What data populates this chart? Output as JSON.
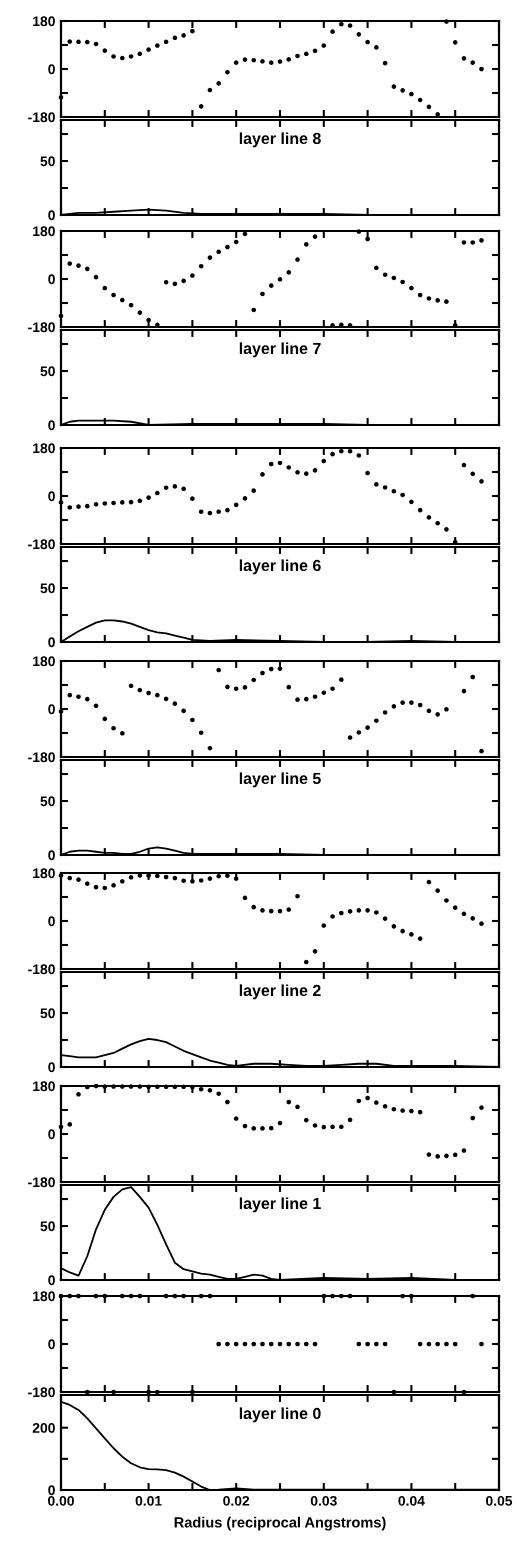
{
  "chart_data": [
    {
      "type": "scatter",
      "color": "#000000",
      "marker": "circle",
      "xlim": [
        0,
        0.05
      ],
      "ylim": [
        -180,
        180
      ],
      "tick_labels": "y",
      "xticks": [
        {
          "value": 0,
          "label": null
        },
        {
          "value": 0.005,
          "label": null
        },
        {
          "value": 0.01,
          "label": null
        },
        {
          "value": 0.015,
          "label": null
        },
        {
          "value": 0.02,
          "label": null
        },
        {
          "value": 0.025,
          "label": null
        },
        {
          "value": 0.03,
          "label": null
        },
        {
          "value": 0.035,
          "label": null
        },
        {
          "value": 0.04,
          "label": null
        },
        {
          "value": 0.045,
          "label": null
        },
        {
          "value": 0.05,
          "label": null
        }
      ],
      "yticks": [
        -180,
        {
          "value": -90,
          "label": null
        },
        0,
        {
          "value": 90,
          "label": null
        },
        180
      ],
      "x": [
        0,
        0.001,
        0.002,
        0.003,
        0.004,
        0.005,
        0.006,
        0.007,
        0.008,
        0.009,
        0.01,
        0.011,
        0.012,
        0.013,
        0.014,
        0.015,
        0.016,
        0.017,
        0.018,
        0.019,
        0.02,
        0.021,
        0.022,
        0.023,
        0.024,
        0.025,
        0.026,
        0.027,
        0.028,
        0.029,
        0.03,
        0.031,
        0.032,
        0.033,
        0.034,
        0.035,
        0.036,
        0.037,
        0.038,
        0.039,
        0.04,
        0.041,
        0.042,
        0.043,
        0.044,
        0.045,
        0.046,
        0.047,
        0.048
      ],
      "values": [
        -106,
        103,
        102,
        101,
        94,
        69,
        47,
        41,
        47,
        57,
        73,
        88,
        102,
        117,
        126,
        142,
        -140,
        -79,
        -54,
        -12,
        24,
        35,
        33,
        29,
        24,
        28,
        36,
        49,
        57,
        68,
        88,
        140,
        168,
        163,
        130,
        101,
        81,
        22,
        -66,
        -80,
        -94,
        -116,
        -142,
        -170,
        178,
        100,
        40,
        24,
        0
      ]
    },
    {
      "type": "line",
      "color": "#000000",
      "title": "layer line 8",
      "xlim": [
        0,
        0.05
      ],
      "ylim": [
        0,
        88
      ],
      "tick_labels": "y",
      "xticks": [
        {
          "value": 0,
          "label": null
        },
        {
          "value": 0.005,
          "label": null
        },
        {
          "value": 0.01,
          "label": null
        },
        {
          "value": 0.015,
          "label": null
        },
        {
          "value": 0.02,
          "label": null
        },
        {
          "value": 0.025,
          "label": null
        },
        {
          "value": 0.03,
          "label": null
        },
        {
          "value": 0.035,
          "label": null
        },
        {
          "value": 0.04,
          "label": null
        },
        {
          "value": 0.045,
          "label": null
        },
        {
          "value": 0.05,
          "label": null
        }
      ],
      "yticks": [
        0,
        {
          "value": 25,
          "label": null
        },
        50,
        {
          "value": 75,
          "label": null
        }
      ],
      "x": [
        0,
        0.002,
        0.004,
        0.006,
        0.008,
        0.01,
        0.012,
        0.014,
        0.016,
        0.02,
        0.025,
        0.03,
        0.035,
        0.04,
        0.045,
        0.05
      ],
      "values": [
        0,
        2,
        2,
        3,
        4,
        5,
        4,
        2,
        1,
        1,
        1,
        1,
        0,
        0,
        0,
        0
      ]
    },
    {
      "type": "scatter",
      "color": "#000000",
      "marker": "circle",
      "xlim": [
        0,
        0.05
      ],
      "ylim": [
        -180,
        180
      ],
      "tick_labels": "y",
      "xticks": [
        {
          "value": 0,
          "label": null
        },
        {
          "value": 0.005,
          "label": null
        },
        {
          "value": 0.01,
          "label": null
        },
        {
          "value": 0.015,
          "label": null
        },
        {
          "value": 0.02,
          "label": null
        },
        {
          "value": 0.025,
          "label": null
        },
        {
          "value": 0.03,
          "label": null
        },
        {
          "value": 0.035,
          "label": null
        },
        {
          "value": 0.04,
          "label": null
        },
        {
          "value": 0.045,
          "label": null
        },
        {
          "value": 0.05,
          "label": null
        }
      ],
      "yticks": [
        -180,
        {
          "value": -90,
          "label": null
        },
        0,
        {
          "value": 90,
          "label": null
        },
        180
      ],
      "x": [
        0,
        0.001,
        0.002,
        0.003,
        0.004,
        0.005,
        0.006,
        0.007,
        0.008,
        0.009,
        0.01,
        0.011,
        0.012,
        0.013,
        0.014,
        0.015,
        0.016,
        0.017,
        0.018,
        0.019,
        0.02,
        0.021,
        0.022,
        0.023,
        0.024,
        0.025,
        0.026,
        0.027,
        0.028,
        0.029,
        0.03,
        0.031,
        0.032,
        0.033,
        0.034,
        0.035,
        0.036,
        0.037,
        0.038,
        0.039,
        0.04,
        0.041,
        0.042,
        0.043,
        0.044,
        0.045,
        0.046,
        0.047,
        0.048
      ],
      "values": [
        -138,
        58,
        50,
        38,
        7,
        -34,
        -60,
        -79,
        -98,
        -126,
        -154,
        -172,
        -12,
        -18,
        -7,
        13,
        48,
        80,
        102,
        120,
        139,
        169,
        -116,
        -56,
        -25,
        -1,
        25,
        73,
        130,
        159,
        null,
        -174,
        -172,
        -174,
        178,
        150,
        42,
        16,
        4,
        -11,
        -34,
        -60,
        -73,
        -80,
        -85,
        -174,
        137,
        137,
        145
      ]
    },
    {
      "type": "line",
      "color": "#000000",
      "title": "layer line 7",
      "xlim": [
        0,
        0.05
      ],
      "ylim": [
        0,
        88
      ],
      "tick_labels": "y",
      "xticks": [
        {
          "value": 0,
          "label": null
        },
        {
          "value": 0.005,
          "label": null
        },
        {
          "value": 0.01,
          "label": null
        },
        {
          "value": 0.015,
          "label": null
        },
        {
          "value": 0.02,
          "label": null
        },
        {
          "value": 0.025,
          "label": null
        },
        {
          "value": 0.03,
          "label": null
        },
        {
          "value": 0.035,
          "label": null
        },
        {
          "value": 0.04,
          "label": null
        },
        {
          "value": 0.045,
          "label": null
        },
        {
          "value": 0.05,
          "label": null
        }
      ],
      "yticks": [
        0,
        {
          "value": 25,
          "label": null
        },
        50,
        {
          "value": 75,
          "label": null
        }
      ],
      "x": [
        0,
        0.001,
        0.002,
        0.004,
        0.006,
        0.008,
        0.01,
        0.015,
        0.02,
        0.025,
        0.03,
        0.035,
        0.04,
        0.045,
        0.05
      ],
      "values": [
        0,
        3,
        4,
        4,
        4,
        3,
        0,
        1,
        1,
        1,
        1,
        0,
        0,
        0,
        0
      ]
    },
    {
      "type": "scatter",
      "color": "#000000",
      "marker": "circle",
      "xlim": [
        0,
        0.05
      ],
      "ylim": [
        -180,
        180
      ],
      "tick_labels": "y",
      "xticks": [
        {
          "value": 0,
          "label": null
        },
        {
          "value": 0.005,
          "label": null
        },
        {
          "value": 0.01,
          "label": null
        },
        {
          "value": 0.015,
          "label": null
        },
        {
          "value": 0.02,
          "label": null
        },
        {
          "value": 0.025,
          "label": null
        },
        {
          "value": 0.03,
          "label": null
        },
        {
          "value": 0.035,
          "label": null
        },
        {
          "value": 0.04,
          "label": null
        },
        {
          "value": 0.045,
          "label": null
        },
        {
          "value": 0.05,
          "label": null
        }
      ],
      "yticks": [
        -180,
        {
          "value": -90,
          "label": null
        },
        0,
        {
          "value": 90,
          "label": null
        },
        180
      ],
      "x": [
        0,
        0.001,
        0.002,
        0.003,
        0.004,
        0.005,
        0.006,
        0.007,
        0.008,
        0.009,
        0.01,
        0.011,
        0.012,
        0.013,
        0.014,
        0.015,
        0.016,
        0.017,
        0.018,
        0.019,
        0.02,
        0.021,
        0.022,
        0.023,
        0.024,
        0.025,
        0.026,
        0.027,
        0.028,
        0.029,
        0.03,
        0.031,
        0.032,
        0.033,
        0.034,
        0.035,
        0.036,
        0.037,
        0.038,
        0.039,
        0.04,
        0.041,
        0.042,
        0.043,
        0.044,
        0.045,
        0.046,
        0.047,
        0.048
      ],
      "values": [
        -24,
        -43,
        -40,
        -38,
        -31,
        -28,
        -26,
        -24,
        -23,
        -18,
        -6,
        11,
        31,
        36,
        27,
        -10,
        -59,
        -64,
        -59,
        -53,
        -33,
        -9,
        20,
        81,
        120,
        124,
        107,
        89,
        84,
        96,
        131,
        157,
        168,
        168,
        152,
        86,
        44,
        32,
        18,
        4,
        -22,
        -53,
        -80,
        -102,
        -125,
        -173,
        116,
        83,
        55
      ]
    },
    {
      "type": "line",
      "color": "#000000",
      "title": "layer line 6",
      "xlim": [
        0,
        0.05
      ],
      "ylim": [
        0,
        88
      ],
      "tick_labels": "y",
      "xticks": [
        {
          "value": 0,
          "label": null
        },
        {
          "value": 0.005,
          "label": null
        },
        {
          "value": 0.01,
          "label": null
        },
        {
          "value": 0.015,
          "label": null
        },
        {
          "value": 0.02,
          "label": null
        },
        {
          "value": 0.025,
          "label": null
        },
        {
          "value": 0.03,
          "label": null
        },
        {
          "value": 0.035,
          "label": null
        },
        {
          "value": 0.04,
          "label": null
        },
        {
          "value": 0.045,
          "label": null
        },
        {
          "value": 0.05,
          "label": null
        }
      ],
      "yticks": [
        0,
        {
          "value": 25,
          "label": null
        },
        50,
        {
          "value": 75,
          "label": null
        }
      ],
      "x": [
        0,
        0.001,
        0.002,
        0.003,
        0.004,
        0.005,
        0.006,
        0.007,
        0.008,
        0.009,
        0.01,
        0.011,
        0.012,
        0.013,
        0.014,
        0.015,
        0.017,
        0.02,
        0.025,
        0.03,
        0.035,
        0.04,
        0.045,
        0.05
      ],
      "values": [
        0,
        5,
        10,
        14,
        18,
        20,
        20,
        19,
        17,
        14,
        11,
        9,
        8,
        6,
        4,
        2,
        1,
        2,
        1,
        0,
        0,
        1,
        0,
        0
      ]
    },
    {
      "type": "scatter",
      "color": "#000000",
      "marker": "circle",
      "xlim": [
        0,
        0.05
      ],
      "ylim": [
        -180,
        180
      ],
      "tick_labels": "y",
      "xticks": [
        {
          "value": 0,
          "label": null
        },
        {
          "value": 0.005,
          "label": null
        },
        {
          "value": 0.01,
          "label": null
        },
        {
          "value": 0.015,
          "label": null
        },
        {
          "value": 0.02,
          "label": null
        },
        {
          "value": 0.025,
          "label": null
        },
        {
          "value": 0.03,
          "label": null
        },
        {
          "value": 0.035,
          "label": null
        },
        {
          "value": 0.04,
          "label": null
        },
        {
          "value": 0.045,
          "label": null
        },
        {
          "value": 0.05,
          "label": null
        }
      ],
      "yticks": [
        -180,
        {
          "value": -90,
          "label": null
        },
        0,
        {
          "value": 90,
          "label": null
        },
        180
      ],
      "x": [
        0,
        0.001,
        0.002,
        0.003,
        0.004,
        0.005,
        0.006,
        0.007,
        0.008,
        0.009,
        0.01,
        0.011,
        0.012,
        0.013,
        0.014,
        0.015,
        0.016,
        0.017,
        0.018,
        0.019,
        0.02,
        0.021,
        0.022,
        0.023,
        0.024,
        0.025,
        0.026,
        0.027,
        0.028,
        0.029,
        0.03,
        0.031,
        0.032,
        0.033,
        0.034,
        0.035,
        0.036,
        0.037,
        0.038,
        0.039,
        0.04,
        0.041,
        0.042,
        0.043,
        0.044,
        0.045,
        0.046,
        0.047,
        0.048
      ],
      "values": [
        -9,
        52,
        46,
        37,
        12,
        -37,
        -72,
        -91,
        87,
        71,
        60,
        52,
        38,
        20,
        -7,
        -41,
        -89,
        -147,
        146,
        83,
        76,
        81,
        109,
        135,
        150,
        151,
        82,
        35,
        37,
        46,
        61,
        76,
        110,
        -107,
        -88,
        -70,
        -44,
        -13,
        10,
        24,
        24,
        15,
        -7,
        -20,
        -1,
        null,
        67,
        120,
        -158
      ]
    },
    {
      "type": "line",
      "color": "#000000",
      "title": "layer line 5",
      "xlim": [
        0,
        0.05
      ],
      "ylim": [
        0,
        88
      ],
      "tick_labels": "y",
      "xticks": [
        {
          "value": 0,
          "label": null
        },
        {
          "value": 0.005,
          "label": null
        },
        {
          "value": 0.01,
          "label": null
        },
        {
          "value": 0.015,
          "label": null
        },
        {
          "value": 0.02,
          "label": null
        },
        {
          "value": 0.025,
          "label": null
        },
        {
          "value": 0.03,
          "label": null
        },
        {
          "value": 0.035,
          "label": null
        },
        {
          "value": 0.04,
          "label": null
        },
        {
          "value": 0.045,
          "label": null
        },
        {
          "value": 0.05,
          "label": null
        }
      ],
      "yticks": [
        0,
        {
          "value": 25,
          "label": null
        },
        50,
        {
          "value": 75,
          "label": null
        }
      ],
      "x": [
        0,
        0.001,
        0.002,
        0.003,
        0.004,
        0.005,
        0.006,
        0.007,
        0.008,
        0.009,
        0.01,
        0.011,
        0.012,
        0.013,
        0.014,
        0.015,
        0.02,
        0.025,
        0.03,
        0.035,
        0.04,
        0.045,
        0.05
      ],
      "values": [
        0,
        3,
        4,
        4,
        3,
        2,
        2,
        1,
        1,
        3,
        6,
        7,
        6,
        4,
        2,
        1,
        1,
        1,
        0,
        0,
        0,
        0,
        0
      ]
    },
    {
      "type": "scatter",
      "color": "#000000",
      "marker": "circle",
      "xlim": [
        0,
        0.05
      ],
      "ylim": [
        -180,
        180
      ],
      "tick_labels": "y",
      "xticks": [
        {
          "value": 0,
          "label": null
        },
        {
          "value": 0.005,
          "label": null
        },
        {
          "value": 0.01,
          "label": null
        },
        {
          "value": 0.015,
          "label": null
        },
        {
          "value": 0.02,
          "label": null
        },
        {
          "value": 0.025,
          "label": null
        },
        {
          "value": 0.03,
          "label": null
        },
        {
          "value": 0.035,
          "label": null
        },
        {
          "value": 0.04,
          "label": null
        },
        {
          "value": 0.045,
          "label": null
        },
        {
          "value": 0.05,
          "label": null
        }
      ],
      "yticks": [
        -180,
        {
          "value": -90,
          "label": null
        },
        0,
        {
          "value": 90,
          "label": null
        },
        180
      ],
      "x": [
        0,
        0.001,
        0.002,
        0.003,
        0.004,
        0.005,
        0.006,
        0.007,
        0.008,
        0.009,
        0.01,
        0.011,
        0.012,
        0.013,
        0.014,
        0.015,
        0.016,
        0.017,
        0.018,
        0.019,
        0.02,
        0.021,
        0.022,
        0.023,
        0.024,
        0.025,
        0.026,
        0.027,
        0.028,
        0.029,
        0.03,
        0.031,
        0.032,
        0.033,
        0.034,
        0.035,
        0.036,
        0.037,
        0.038,
        0.039,
        0.04,
        0.041,
        0.042,
        0.043,
        0.044,
        0.045,
        0.046,
        0.047,
        0.048
      ],
      "values": [
        170,
        161,
        155,
        140,
        127,
        124,
        134,
        149,
        164,
        171,
        171,
        169,
        165,
        161,
        151,
        149,
        152,
        159,
        168,
        170,
        159,
        87,
        52,
        40,
        37,
        37,
        43,
        93,
        -154,
        -114,
        -17,
        17,
        30,
        36,
        40,
        40,
        32,
        9,
        -20,
        -38,
        -50,
        -66,
        146,
        114,
        77,
        50,
        27,
        10,
        -10
      ]
    },
    {
      "type": "line",
      "color": "#000000",
      "title": "layer line 2",
      "xlim": [
        0,
        0.05
      ],
      "ylim": [
        0,
        88
      ],
      "tick_labels": "y",
      "xticks": [
        {
          "value": 0,
          "label": null
        },
        {
          "value": 0.005,
          "label": null
        },
        {
          "value": 0.01,
          "label": null
        },
        {
          "value": 0.015,
          "label": null
        },
        {
          "value": 0.02,
          "label": null
        },
        {
          "value": 0.025,
          "label": null
        },
        {
          "value": 0.03,
          "label": null
        },
        {
          "value": 0.035,
          "label": null
        },
        {
          "value": 0.04,
          "label": null
        },
        {
          "value": 0.045,
          "label": null
        },
        {
          "value": 0.05,
          "label": null
        }
      ],
      "yticks": [
        0,
        {
          "value": 25,
          "label": null
        },
        50,
        {
          "value": 75,
          "label": null
        }
      ],
      "x": [
        0,
        0.001,
        0.002,
        0.003,
        0.004,
        0.005,
        0.006,
        0.007,
        0.008,
        0.009,
        0.01,
        0.011,
        0.012,
        0.013,
        0.014,
        0.015,
        0.016,
        0.017,
        0.018,
        0.019,
        0.02,
        0.022,
        0.024,
        0.026,
        0.028,
        0.03,
        0.032,
        0.034,
        0.036,
        0.038,
        0.04,
        0.045,
        0.05
      ],
      "values": [
        11,
        10,
        9,
        9,
        9,
        11,
        13,
        17,
        21,
        24,
        26,
        25,
        23,
        19,
        15,
        12,
        9,
        6,
        4,
        2,
        1,
        3,
        3,
        2,
        1,
        1,
        2,
        3,
        3,
        1,
        1,
        1,
        0
      ]
    },
    {
      "type": "scatter",
      "color": "#000000",
      "marker": "circle",
      "xlim": [
        0,
        0.05
      ],
      "ylim": [
        -180,
        180
      ],
      "tick_labels": "y",
      "xticks": [
        {
          "value": 0,
          "label": null
        },
        {
          "value": 0.005,
          "label": null
        },
        {
          "value": 0.01,
          "label": null
        },
        {
          "value": 0.015,
          "label": null
        },
        {
          "value": 0.02,
          "label": null
        },
        {
          "value": 0.025,
          "label": null
        },
        {
          "value": 0.03,
          "label": null
        },
        {
          "value": 0.035,
          "label": null
        },
        {
          "value": 0.04,
          "label": null
        },
        {
          "value": 0.045,
          "label": null
        },
        {
          "value": 0.05,
          "label": null
        }
      ],
      "yticks": [
        -180,
        {
          "value": -90,
          "label": null
        },
        0,
        {
          "value": 90,
          "label": null
        },
        180
      ],
      "x": [
        0,
        0.001,
        0.002,
        0.003,
        0.004,
        0.005,
        0.006,
        0.007,
        0.008,
        0.009,
        0.01,
        0.011,
        0.012,
        0.013,
        0.014,
        0.015,
        0.016,
        0.017,
        0.018,
        0.019,
        0.02,
        0.021,
        0.022,
        0.023,
        0.024,
        0.025,
        0.026,
        0.027,
        0.028,
        0.029,
        0.03,
        0.031,
        0.032,
        0.033,
        0.034,
        0.035,
        0.036,
        0.037,
        0.038,
        0.039,
        0.04,
        0.041,
        0.042,
        0.043,
        0.044,
        0.045,
        0.046,
        0.047,
        0.048
      ],
      "values": [
        27,
        36,
        149,
        176,
        180,
        178,
        178,
        178,
        178,
        178,
        177,
        177,
        177,
        177,
        177,
        176,
        168,
        164,
        151,
        120,
        58,
        30,
        21,
        21,
        22,
        41,
        120,
        102,
        52,
        32,
        26,
        27,
        27,
        53,
        124,
        135,
        118,
        104,
        93,
        88,
        86,
        82,
        -77,
        -84,
        -82,
        -78,
        -62,
        60,
        99
      ]
    },
    {
      "type": "line",
      "color": "#000000",
      "title": "layer line 1",
      "xlim": [
        0,
        0.05
      ],
      "ylim": [
        0,
        88
      ],
      "tick_labels": "y",
      "xticks": [
        {
          "value": 0,
          "label": null
        },
        {
          "value": 0.005,
          "label": null
        },
        {
          "value": 0.01,
          "label": null
        },
        {
          "value": 0.015,
          "label": null
        },
        {
          "value": 0.02,
          "label": null
        },
        {
          "value": 0.025,
          "label": null
        },
        {
          "value": 0.03,
          "label": null
        },
        {
          "value": 0.035,
          "label": null
        },
        {
          "value": 0.04,
          "label": null
        },
        {
          "value": 0.045,
          "label": null
        },
        {
          "value": 0.05,
          "label": null
        }
      ],
      "yticks": [
        0,
        {
          "value": 25,
          "label": null
        },
        50,
        {
          "value": 75,
          "label": null
        }
      ],
      "x": [
        0,
        0.001,
        0.002,
        0.003,
        0.004,
        0.005,
        0.006,
        0.007,
        0.008,
        0.009,
        0.01,
        0.011,
        0.012,
        0.013,
        0.014,
        0.015,
        0.016,
        0.017,
        0.018,
        0.019,
        0.02,
        0.021,
        0.022,
        0.023,
        0.024,
        0.025,
        0.03,
        0.035,
        0.04,
        0.045,
        0.05
      ],
      "values": [
        11,
        7,
        4,
        22,
        47,
        65,
        77,
        84,
        86,
        77,
        67,
        51,
        33,
        16,
        10,
        8,
        6,
        5,
        3,
        1,
        1,
        3,
        5,
        4,
        1,
        0,
        2,
        1,
        2,
        0,
        0
      ]
    },
    {
      "type": "scatter",
      "color": "#000000",
      "marker": "circle",
      "xlim": [
        0,
        0.05
      ],
      "ylim": [
        -180,
        180
      ],
      "tick_labels": "y",
      "xticks": [
        {
          "value": 0,
          "label": null
        },
        {
          "value": 0.005,
          "label": null
        },
        {
          "value": 0.01,
          "label": null
        },
        {
          "value": 0.015,
          "label": null
        },
        {
          "value": 0.02,
          "label": null
        },
        {
          "value": 0.025,
          "label": null
        },
        {
          "value": 0.03,
          "label": null
        },
        {
          "value": 0.035,
          "label": null
        },
        {
          "value": 0.04,
          "label": null
        },
        {
          "value": 0.045,
          "label": null
        },
        {
          "value": 0.05,
          "label": null
        }
      ],
      "yticks": [
        -180,
        {
          "value": -90,
          "label": null
        },
        0,
        {
          "value": 90,
          "label": null
        },
        180
      ],
      "x": [
        0,
        0.001,
        0.002,
        0.003,
        0.004,
        0.005,
        0.006,
        0.007,
        0.008,
        0.009,
        0.01,
        0.011,
        0.012,
        0.013,
        0.014,
        0.015,
        0.016,
        0.017,
        0.018,
        0.019,
        0.02,
        0.021,
        0.022,
        0.023,
        0.024,
        0.025,
        0.026,
        0.027,
        0.028,
        0.029,
        0.03,
        0.031,
        0.032,
        0.033,
        0.034,
        0.035,
        0.036,
        0.037,
        0.038,
        0.039,
        0.04,
        0.041,
        0.042,
        0.043,
        0.044,
        0.045,
        0.046,
        0.047,
        0.048
      ],
      "values": [
        180,
        180,
        180,
        -180,
        180,
        180,
        -180,
        180,
        180,
        180,
        -180,
        -180,
        180,
        180,
        180,
        -180,
        180,
        180,
        0,
        0,
        0,
        0,
        0,
        0,
        0,
        0,
        0,
        0,
        0,
        0,
        180,
        180,
        180,
        180,
        0,
        0,
        0,
        0,
        -180,
        180,
        180,
        0,
        0,
        0,
        0,
        0,
        -180,
        180,
        0
      ]
    },
    {
      "type": "line",
      "color": "#000000",
      "title": "layer line 0",
      "xlabel": "Radius (reciprocal Angstroms)",
      "xlim": [
        0,
        0.05
      ],
      "ylim": [
        0,
        305
      ],
      "xticks": [
        {
          "value": 0,
          "label": "0.00"
        },
        {
          "value": 0.005,
          "label": null
        },
        {
          "value": 0.01,
          "label": "0.01"
        },
        {
          "value": 0.015,
          "label": null
        },
        {
          "value": 0.02,
          "label": "0.02"
        },
        {
          "value": 0.025,
          "label": null
        },
        {
          "value": 0.03,
          "label": "0.03"
        },
        {
          "value": 0.035,
          "label": null
        },
        {
          "value": 0.04,
          "label": "0.04"
        },
        {
          "value": 0.045,
          "label": null
        },
        {
          "value": 0.05,
          "label": "0.05"
        }
      ],
      "yticks": [
        0,
        {
          "value": 100,
          "label": null
        },
        200
      ],
      "x": [
        0,
        0.001,
        0.002,
        0.003,
        0.004,
        0.005,
        0.006,
        0.007,
        0.008,
        0.009,
        0.01,
        0.011,
        0.012,
        0.013,
        0.014,
        0.015,
        0.016,
        0.017,
        0.018,
        0.02,
        0.022,
        0.025,
        0.03,
        0.035,
        0.04,
        0.045,
        0.05
      ],
      "values": [
        283,
        273,
        257,
        230,
        198,
        166,
        134,
        107,
        86,
        73,
        67,
        66,
        64,
        56,
        43,
        27,
        11,
        0,
        1,
        5,
        1,
        1,
        1,
        1,
        1,
        1,
        1
      ]
    }
  ]
}
